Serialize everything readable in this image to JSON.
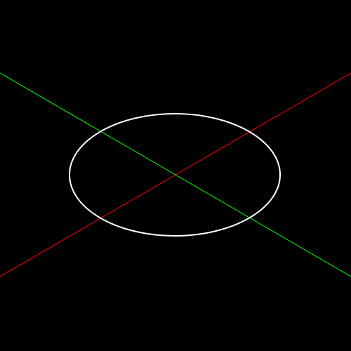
{
  "viewport": {
    "view": "isometric",
    "background_color": "#000000"
  },
  "axes": [
    {
      "name": "x-axis",
      "color": "#ff0000"
    },
    {
      "name": "y-axis",
      "color": "#00ff00"
    }
  ],
  "shapes": [
    {
      "type": "circle",
      "plane": "ground",
      "color": "#ffffff"
    }
  ]
}
